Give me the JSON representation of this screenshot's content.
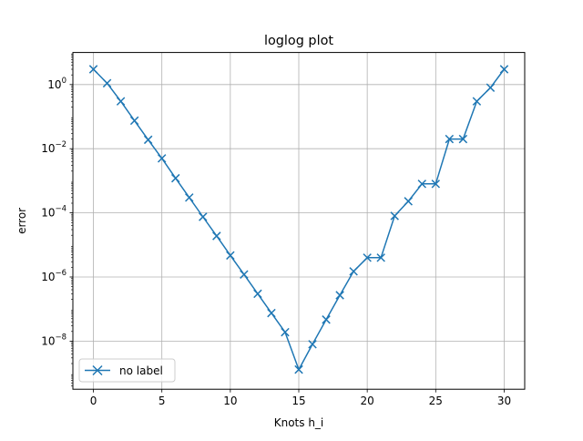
{
  "chart_data": {
    "type": "line",
    "title": "loglog plot",
    "xlabel": "Knots h_i",
    "ylabel": "error",
    "yscale": "log",
    "xlim": [
      -1.5,
      31.5
    ],
    "ylim_exp": [
      -9.5,
      1.0
    ],
    "grid": true,
    "legend_placement": "lower-left",
    "x_ticks": [
      0,
      5,
      10,
      15,
      20,
      25,
      30
    ],
    "x_tick_labels": [
      "0",
      "5",
      "10",
      "15",
      "20",
      "25",
      "30"
    ],
    "y_tick_exps": [
      0,
      -2,
      -4,
      -6,
      -8
    ],
    "y_tick_labels": [
      {
        "base": "10",
        "exp": "0"
      },
      {
        "base": "10",
        "exp": "−2"
      },
      {
        "base": "10",
        "exp": "−4"
      },
      {
        "base": "10",
        "exp": "−6"
      },
      {
        "base": "10",
        "exp": "−8"
      }
    ],
    "series": [
      {
        "name": "no label",
        "color": "#1f77b4",
        "marker": "x",
        "x": [
          0,
          1,
          2,
          3,
          4,
          5,
          6,
          7,
          8,
          9,
          10,
          11,
          12,
          13,
          14,
          15,
          16,
          17,
          18,
          19,
          20,
          21,
          22,
          23,
          24,
          25,
          26,
          27,
          28,
          29,
          30
        ],
        "y": [
          3.0,
          1.1,
          0.3,
          0.075,
          0.019,
          0.005,
          0.0012,
          0.0003,
          7.5e-05,
          1.9e-05,
          4.7e-06,
          1.2e-06,
          3e-07,
          7.5e-08,
          1.9e-08,
          1.3e-09,
          8e-09,
          4.7e-08,
          2.7e-07,
          1.5e-06,
          4e-06,
          4e-06,
          8e-05,
          0.00023,
          0.0008,
          0.0008,
          0.02,
          0.02,
          0.3,
          0.8,
          3.0
        ]
      }
    ]
  }
}
